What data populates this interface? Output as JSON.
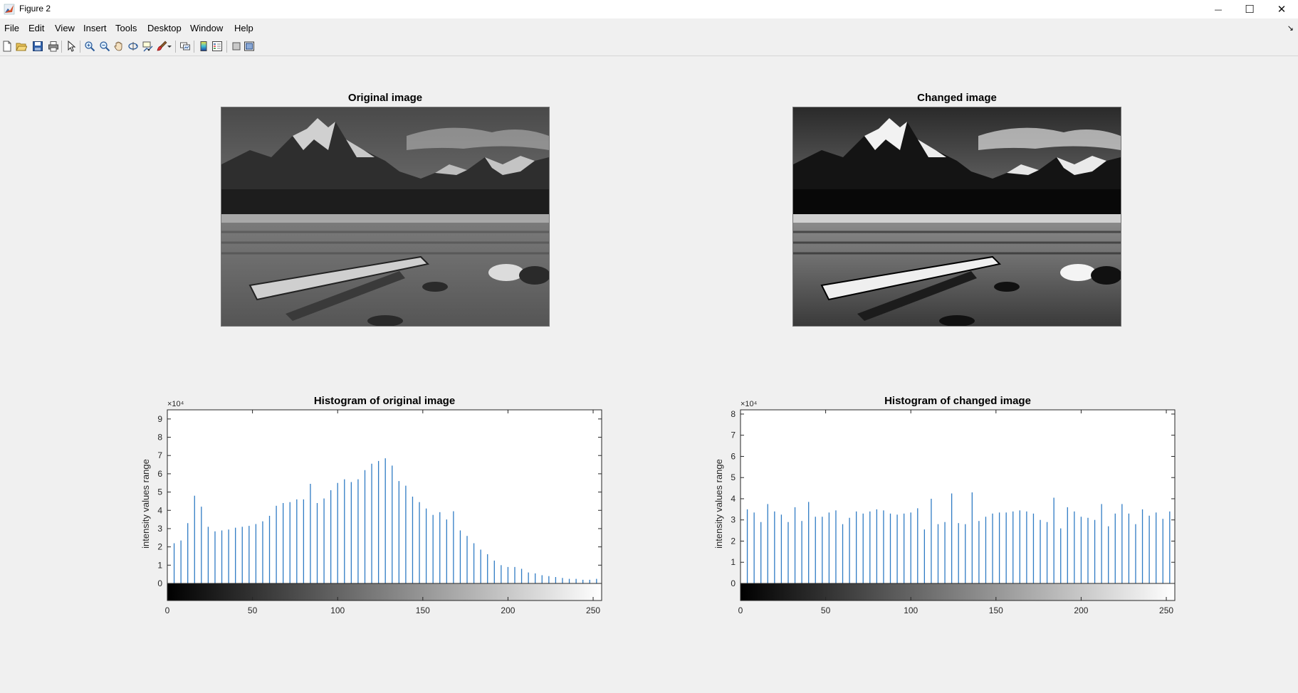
{
  "window": {
    "title": "Figure 2",
    "min_glyph": "—",
    "max_glyph": "☐",
    "close_glyph": "✕"
  },
  "menu": {
    "items": [
      "File",
      "Edit",
      "View",
      "Insert",
      "Tools",
      "Desktop",
      "Window",
      "Help"
    ],
    "dock_arrow": "↘"
  },
  "toolbar": {
    "icons": [
      "new-figure-icon",
      "open-file-icon",
      "save-icon",
      "print-icon",
      "pointer-icon",
      "zoom-in-icon",
      "zoom-out-icon",
      "pan-icon",
      "rotate-3d-icon",
      "data-cursor-icon",
      "brush-icon",
      "link-plot-icon",
      "colorbar-icon",
      "legend-icon",
      "hide-plot-tools-icon",
      "show-plot-tools-icon"
    ]
  },
  "figure": {
    "original_image_title": "Original image",
    "changed_image_title": "Changed image"
  },
  "chart_data": [
    {
      "type": "bar",
      "title": "Histogram of original image",
      "xlabel": "",
      "ylabel": "intensity values range",
      "exponent_label": "×10⁴",
      "xlim": [
        0,
        255
      ],
      "ylim": [
        0,
        95000
      ],
      "xticks": [
        0,
        50,
        100,
        150,
        200,
        250
      ],
      "yticks": [
        0,
        10000,
        20000,
        30000,
        40000,
        50000,
        60000,
        70000,
        80000,
        90000
      ],
      "ytick_labels": [
        "0",
        "1",
        "2",
        "3",
        "4",
        "5",
        "6",
        "7",
        "8",
        "9"
      ],
      "x": [
        4,
        8,
        12,
        16,
        20,
        24,
        28,
        32,
        36,
        40,
        44,
        48,
        52,
        56,
        60,
        64,
        68,
        72,
        76,
        80,
        84,
        88,
        92,
        96,
        100,
        104,
        108,
        112,
        116,
        120,
        124,
        128,
        132,
        136,
        140,
        144,
        148,
        152,
        156,
        160,
        164,
        168,
        172,
        176,
        180,
        184,
        188,
        192,
        196,
        200,
        204,
        208,
        212,
        216,
        220,
        224,
        228,
        232,
        236,
        240,
        244,
        248,
        252
      ],
      "values": [
        22000,
        23500,
        33000,
        48000,
        42000,
        31000,
        28500,
        29000,
        29500,
        30500,
        31000,
        31500,
        32500,
        34000,
        37000,
        42500,
        44000,
        44500,
        46000,
        46000,
        54500,
        44000,
        46500,
        51000,
        55000,
        57000,
        55500,
        57000,
        62000,
        65500,
        67000,
        68500,
        64500,
        56000,
        53500,
        47500,
        44500,
        41000,
        37500,
        39000,
        35000,
        39500,
        29000,
        26000,
        22000,
        18500,
        16000,
        12500,
        10000,
        9000,
        9000,
        8000,
        6000,
        5500,
        4500,
        4000,
        3500,
        3000,
        2500,
        2500,
        2000,
        2000,
        2500
      ]
    },
    {
      "type": "bar",
      "title": "Histogram of changed image",
      "xlabel": "",
      "ylabel": "intensity values range",
      "exponent_label": "×10⁴",
      "xlim": [
        0,
        255
      ],
      "ylim": [
        0,
        82000
      ],
      "xticks": [
        0,
        50,
        100,
        150,
        200,
        250
      ],
      "yticks": [
        0,
        10000,
        20000,
        30000,
        40000,
        50000,
        60000,
        70000,
        80000
      ],
      "ytick_labels": [
        "0",
        "1",
        "2",
        "3",
        "4",
        "5",
        "6",
        "7",
        "8"
      ],
      "x": [
        4,
        8,
        12,
        16,
        20,
        24,
        28,
        32,
        36,
        40,
        44,
        48,
        52,
        56,
        60,
        64,
        68,
        72,
        76,
        80,
        84,
        88,
        92,
        96,
        100,
        104,
        108,
        112,
        116,
        120,
        124,
        128,
        132,
        136,
        140,
        144,
        148,
        152,
        156,
        160,
        164,
        168,
        172,
        176,
        180,
        184,
        188,
        192,
        196,
        200,
        204,
        208,
        212,
        216,
        220,
        224,
        228,
        232,
        236,
        240,
        244,
        248,
        252
      ],
      "values": [
        35000,
        33500,
        29000,
        37500,
        34000,
        32500,
        29000,
        36000,
        29500,
        38500,
        31500,
        31500,
        33500,
        34500,
        28000,
        31000,
        34000,
        33000,
        34000,
        35000,
        34500,
        33000,
        32500,
        33000,
        33500,
        35500,
        25500,
        40000,
        28000,
        29000,
        42500,
        28500,
        28000,
        43000,
        29500,
        31500,
        33000,
        33500,
        33500,
        34000,
        34500,
        34000,
        33000,
        30000,
        29000,
        40500,
        26000,
        36000,
        34000,
        31500,
        31000,
        30000,
        37500,
        27000,
        33000,
        37500,
        33000,
        28000,
        35000,
        32000,
        33500,
        30500,
        34000
      ]
    }
  ]
}
